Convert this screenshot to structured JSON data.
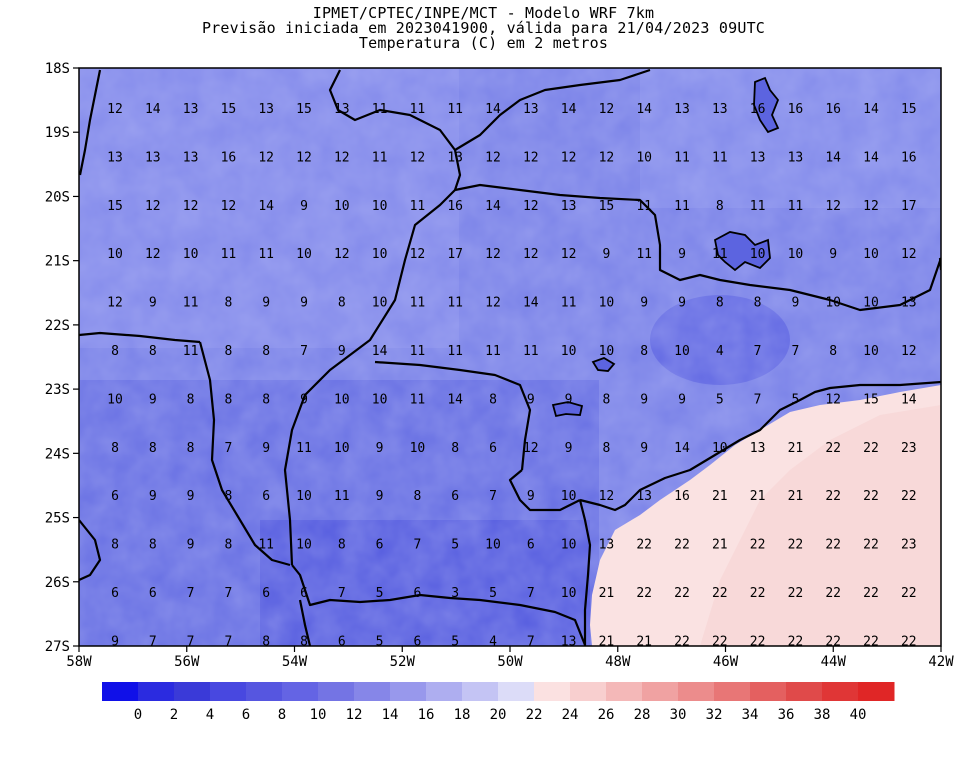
{
  "title": {
    "line1": "IPMET/CPTEC/INPE/MCT - Modelo WRF 7km",
    "line2": "Previsão iniciada em 2023041900, válida para 21/04/2023 09UTC",
    "line3": "Temperatura (C) em 2 metros"
  },
  "map": {
    "lon_range": [
      -58,
      -42
    ],
    "lat_range": [
      -27,
      -18
    ],
    "x_ticks": [
      "58W",
      "56W",
      "54W",
      "52W",
      "50W",
      "48W",
      "46W",
      "44W",
      "42W"
    ],
    "y_ticks": [
      "18S",
      "19S",
      "20S",
      "21S",
      "22S",
      "23S",
      "24S",
      "25S",
      "26S",
      "27S"
    ],
    "value_rows": [
      [
        "12",
        "14",
        "13",
        "15",
        "13",
        "15",
        "13",
        "11",
        "11",
        "11",
        "14",
        "13",
        "14",
        "12",
        "14",
        "13",
        "13",
        "16",
        "16",
        "16",
        "14",
        "15"
      ],
      [
        "13",
        "13",
        "13",
        "16",
        "12",
        "12",
        "12",
        "11",
        "12",
        "13",
        "12",
        "12",
        "12",
        "12",
        "10",
        "11",
        "11",
        "13",
        "13",
        "14",
        "14",
        "16"
      ],
      [
        "15",
        "12",
        "12",
        "12",
        "14",
        "9",
        "10",
        "10",
        "11",
        "16",
        "14",
        "12",
        "13",
        "15",
        "11",
        "11",
        "8",
        "11",
        "11",
        "12",
        "12",
        "17"
      ],
      [
        "10",
        "12",
        "10",
        "11",
        "11",
        "10",
        "12",
        "10",
        "12",
        "17",
        "12",
        "12",
        "12",
        "9",
        "11",
        "9",
        "11",
        "10",
        "10",
        "9",
        "10",
        "12"
      ],
      [
        "12",
        "9",
        "11",
        "8",
        "9",
        "9",
        "8",
        "10",
        "11",
        "11",
        "12",
        "14",
        "11",
        "10",
        "9",
        "9",
        "8",
        "8",
        "9",
        "10",
        "10",
        "13"
      ],
      [
        "8",
        "8",
        "11",
        "8",
        "8",
        "7",
        "9",
        "14",
        "11",
        "11",
        "11",
        "11",
        "10",
        "10",
        "8",
        "10",
        "4",
        "7",
        "7",
        "8",
        "10",
        "12"
      ],
      [
        "10",
        "9",
        "8",
        "8",
        "8",
        "9",
        "10",
        "10",
        "11",
        "14",
        "8",
        "9",
        "9",
        "8",
        "9",
        "9",
        "5",
        "7",
        "5",
        "12",
        "15",
        "14"
      ],
      [
        "8",
        "8",
        "8",
        "7",
        "9",
        "11",
        "10",
        "9",
        "10",
        "8",
        "6",
        "12",
        "9",
        "8",
        "9",
        "14",
        "10",
        "13",
        "21",
        "22",
        "22",
        "23"
      ],
      [
        "6",
        "9",
        "9",
        "8",
        "6",
        "10",
        "11",
        "9",
        "8",
        "6",
        "7",
        "9",
        "10",
        "12",
        "13",
        "16",
        "21",
        "21",
        "21",
        "22",
        "22",
        "22"
      ],
      [
        "8",
        "8",
        "9",
        "8",
        "11",
        "10",
        "8",
        "6",
        "7",
        "5",
        "10",
        "6",
        "10",
        "13",
        "22",
        "22",
        "21",
        "22",
        "22",
        "22",
        "22",
        "23"
      ],
      [
        "6",
        "6",
        "7",
        "7",
        "6",
        "6",
        "7",
        "5",
        "6",
        "3",
        "5",
        "7",
        "10",
        "21",
        "22",
        "22",
        "22",
        "22",
        "22",
        "22",
        "22",
        "22"
      ],
      [
        "9",
        "7",
        "7",
        "7",
        "8",
        "8",
        "6",
        "5",
        "6",
        "5",
        "4",
        "7",
        "13",
        "21",
        "21",
        "22",
        "22",
        "22",
        "22",
        "22",
        "22",
        "22"
      ]
    ]
  },
  "colorbar": {
    "colors": [
      "#1010e8",
      "#2b2be0",
      "#3a3ad8",
      "#4848e0",
      "#5656e0",
      "#6464e4",
      "#7474e4",
      "#8686e8",
      "#9898ec",
      "#aeaef0",
      "#c4c4f4",
      "#dcdcf8",
      "#fbe1e1",
      "#f8cfcf",
      "#f4b8b8",
      "#f0a2a2",
      "#ec8c8c",
      "#e87676",
      "#e46060",
      "#e04a4a",
      "#e03636",
      "#e02626"
    ],
    "labels": [
      "0",
      "2",
      "4",
      "6",
      "8",
      "10",
      "12",
      "14",
      "16",
      "18",
      "20",
      "22",
      "24",
      "26",
      "28",
      "30",
      "32",
      "34",
      "36",
      "38",
      "40"
    ]
  }
}
